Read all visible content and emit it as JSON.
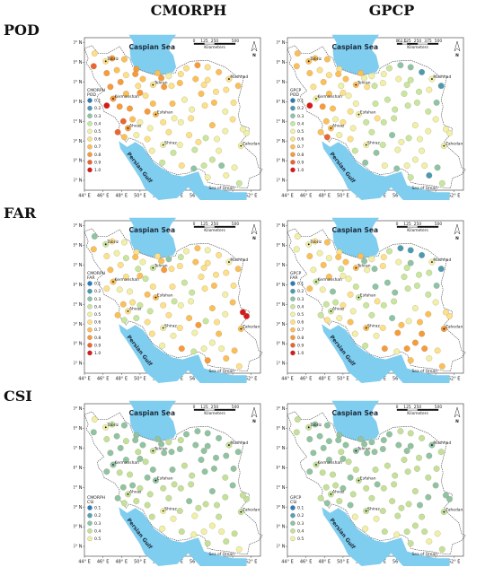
{
  "columns": [
    "CMORPH",
    "GPCP"
  ],
  "rows": [
    "POD",
    "FAR",
    "CSI"
  ],
  "map": {
    "sea_caspian": "Caspian Sea",
    "sea_gulf": "Persian Gulf",
    "sea_oman": "Sea of Oman",
    "north": "N",
    "lat_ticks": [
      "40° N",
      "38° N",
      "36° N",
      "34° N",
      "32° N",
      "30° N",
      "28° N",
      "26° N"
    ],
    "lon_ticks": [
      "44° E",
      "46° E",
      "48° E",
      "50° E",
      "52° E",
      "54° E",
      "56° E",
      "58° E",
      "60° E",
      "62° E"
    ],
    "cities": [
      {
        "name": "Tabriz",
        "lon": 46.3,
        "lat": 38.1
      },
      {
        "name": "Tehran",
        "lon": 51.4,
        "lat": 35.7
      },
      {
        "name": "Mashhad",
        "lon": 59.6,
        "lat": 36.3
      },
      {
        "name": "Kermanshah",
        "lon": 47.1,
        "lat": 34.3
      },
      {
        "name": "Esfahan",
        "lon": 51.7,
        "lat": 32.7
      },
      {
        "name": "Ahvaz",
        "lon": 48.7,
        "lat": 31.3
      },
      {
        "name": "Shiraz",
        "lon": 52.5,
        "lat": 29.6
      },
      {
        "name": "Zahedan",
        "lon": 60.9,
        "lat": 29.5
      }
    ],
    "scale_labels_default": [
      "0",
      "125",
      "250",
      "500"
    ],
    "scale_labels_gpcp_pod": [
      "0",
      "62.5",
      "125",
      "250",
      "375",
      "500"
    ],
    "scale_unit": "Kilometers"
  },
  "legends": {
    "pod": {
      "title_cmorph": "CMORPH",
      "title_gpcp": "GPCP",
      "variable": "POD",
      "values": [
        "0.1",
        "0.2",
        "0.3",
        "0.4",
        "0.5",
        "0.6",
        "0.7",
        "0.8",
        "0.9",
        "1.0"
      ]
    },
    "far": {
      "title_cmorph": "CMORPH",
      "title_gpcp": "GPCP",
      "variable": "FAR",
      "values": [
        "0.1",
        "0.2",
        "0.3",
        "0.4",
        "0.5",
        "0.6",
        "0.7",
        "0.8",
        "0.9",
        "1.0"
      ]
    },
    "csi": {
      "title_cmorph": "CMORPH",
      "title_gpcp": "GPCP",
      "variable": "CSI",
      "values": [
        "0.1",
        "0.2",
        "0.3",
        "0.4",
        "0.5"
      ]
    }
  },
  "legend_colors_10": [
    "#2c7bb6",
    "#4a9ab4",
    "#8cc4a8",
    "#c7e6a0",
    "#f0f0a8",
    "#fde08a",
    "#fbbf5a",
    "#f69a3c",
    "#ea6630",
    "#d7191c"
  ],
  "legend_colors_5": [
    "#2c7bb6",
    "#5a9fb5",
    "#8ec3a4",
    "#c3e19b",
    "#f0f0a8"
  ],
  "colors": {
    "sea": "#7fcdef",
    "boundary": "#444444",
    "background": "#ffffff"
  }
}
